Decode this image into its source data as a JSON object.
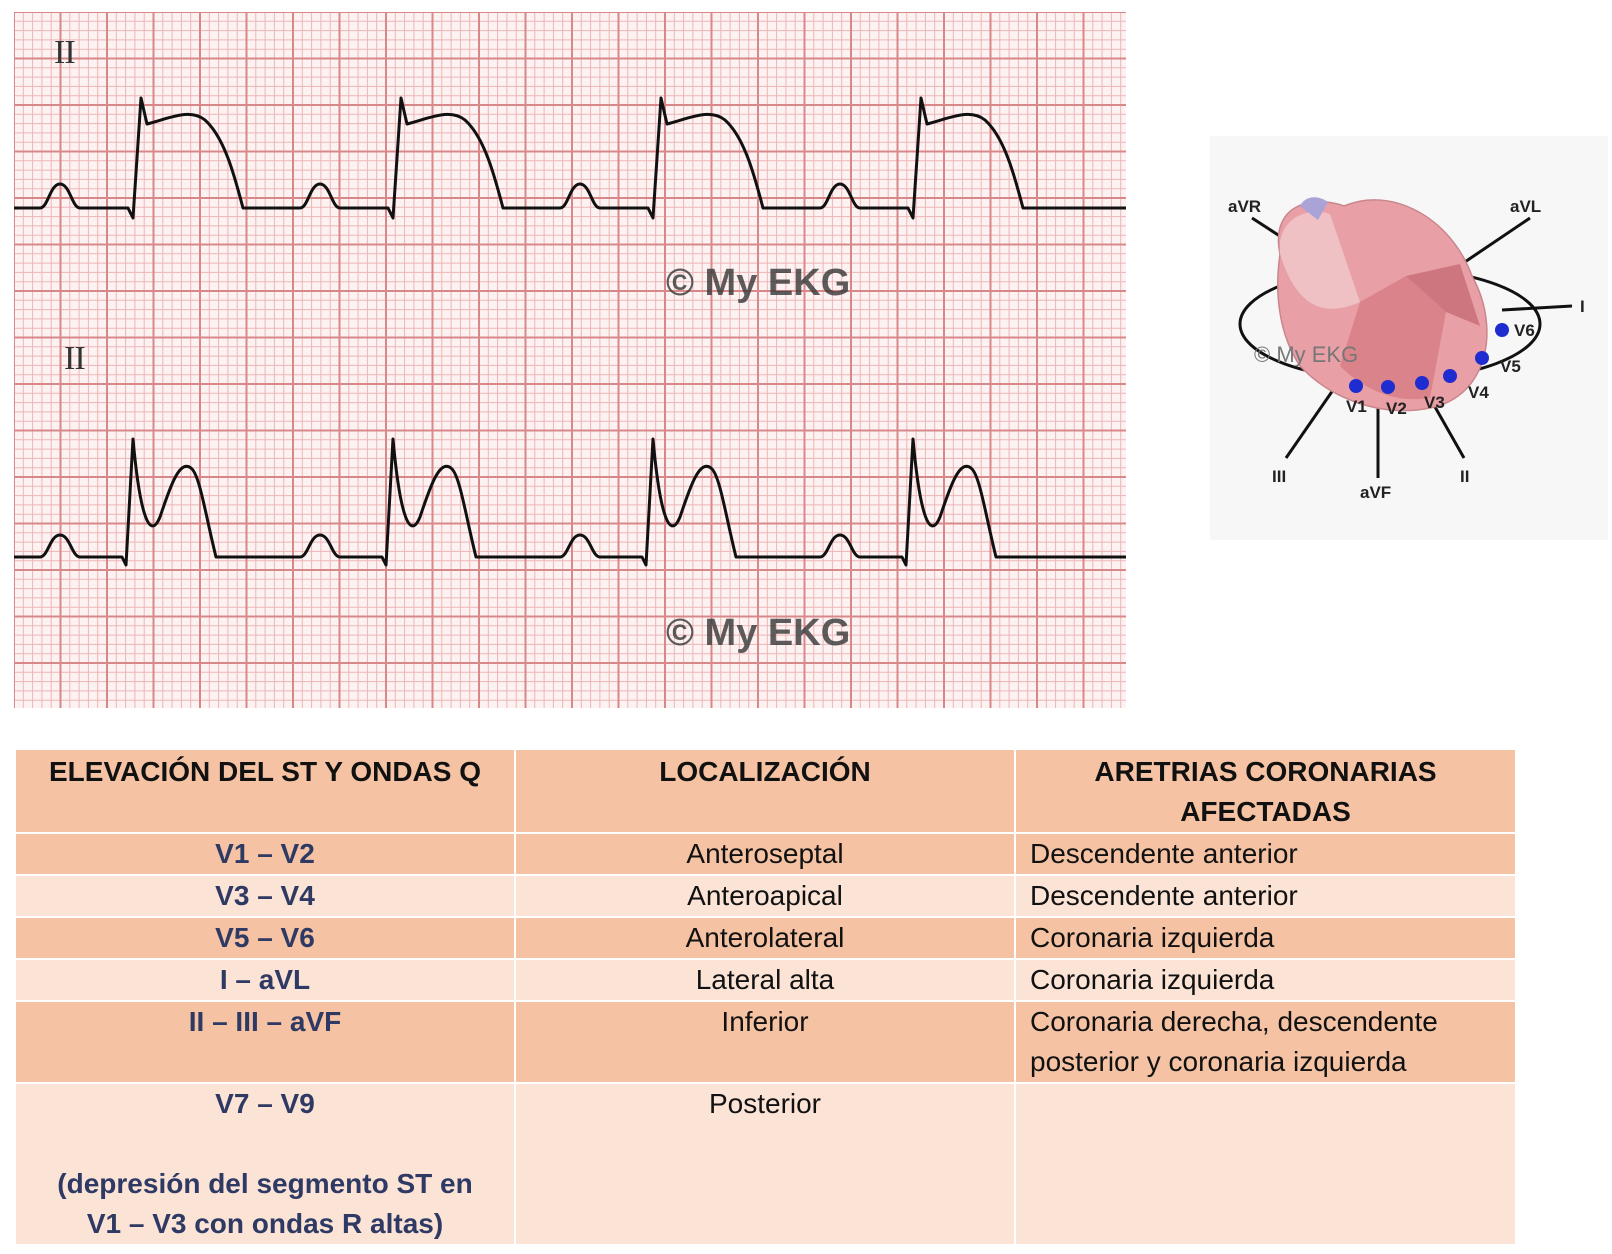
{
  "ekg": {
    "lead_top": "II",
    "lead_bottom": "II",
    "watermark_top": "© My EKG",
    "watermark_bottom": "© My EKG",
    "grid_color": "#d9888a",
    "grid_fine_color": "#edb5b7",
    "paper_color": "#fdf2f2",
    "trace_color": "#111111"
  },
  "heart": {
    "watermark": "© My EKG",
    "limb_leads": [
      "aVR",
      "aVL",
      "I",
      "II",
      "aVF",
      "III"
    ],
    "precordial_leads": [
      "V1",
      "V2",
      "V3",
      "V4",
      "V5",
      "V6"
    ],
    "electrode_color": "#1f2ccf"
  },
  "table": {
    "headers": {
      "col1": "ELEVACIÓN DEL ST Y ONDAS Q",
      "col2": "LOCALIZACIÓN",
      "col3_line1": "ARETRIAS CORONARIAS",
      "col3_line2": "AFECTADAS"
    },
    "rows": [
      {
        "leads": "V1 – V2",
        "location": "Anteroseptal",
        "artery": "Descendente anterior"
      },
      {
        "leads": "V3 – V4",
        "location": "Anteroapical",
        "artery": "Descendente anterior"
      },
      {
        "leads": "V5 – V6",
        "location": "Anterolateral",
        "artery": "Coronaria izquierda"
      },
      {
        "leads": "I – aVL",
        "location": "Lateral alta",
        "artery": "Coronaria izquierda"
      },
      {
        "leads": "II – III – aVF",
        "location": "Inferior",
        "artery_line1": "Coronaria derecha, descendente",
        "artery_line2": "posterior y coronaria izquierda"
      },
      {
        "leads": "V7 – V9",
        "leads_note_line1": "(depresión del segmento ST en",
        "leads_note_line2": "V1 – V3 con ondas R altas)",
        "location": "Posterior",
        "artery": ""
      }
    ]
  }
}
